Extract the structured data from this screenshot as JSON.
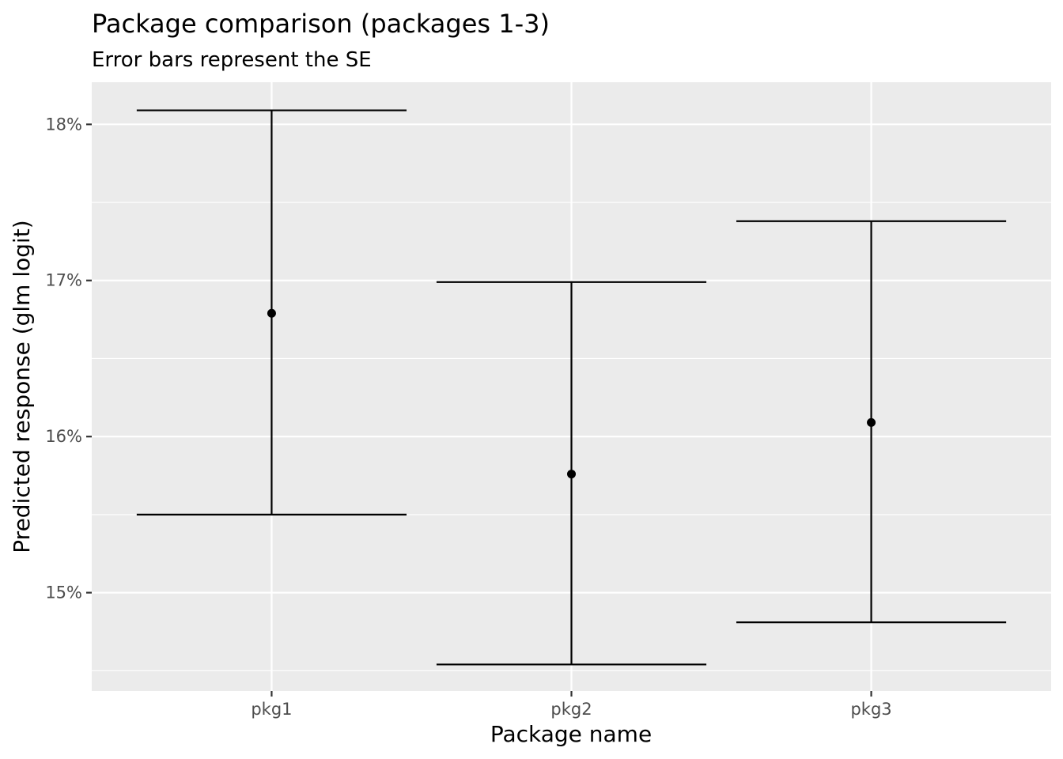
{
  "chart_data": {
    "type": "errorbar",
    "title": "Package comparison (packages 1-3)",
    "subtitle": "Error bars represent the SE",
    "xlabel": "Package name",
    "ylabel": "Predicted response (glm logit)",
    "categories": [
      "pkg1",
      "pkg2",
      "pkg3"
    ],
    "points": [
      {
        "x": "pkg1",
        "y": 16.79,
        "lower": 15.5,
        "upper": 18.09
      },
      {
        "x": "pkg2",
        "y": 15.76,
        "lower": 14.54,
        "upper": 16.99
      },
      {
        "x": "pkg3",
        "y": 16.09,
        "lower": 14.81,
        "upper": 17.38
      }
    ],
    "y_ticks": [
      15,
      16,
      17,
      18
    ],
    "y_tick_labels": [
      "15%",
      "16%",
      "17%",
      "18%"
    ],
    "ylim": [
      14.37,
      18.27
    ],
    "grid": true,
    "panel_background": "#ebebeb",
    "grid_color": "#ffffff",
    "mark_color": "#000000"
  }
}
